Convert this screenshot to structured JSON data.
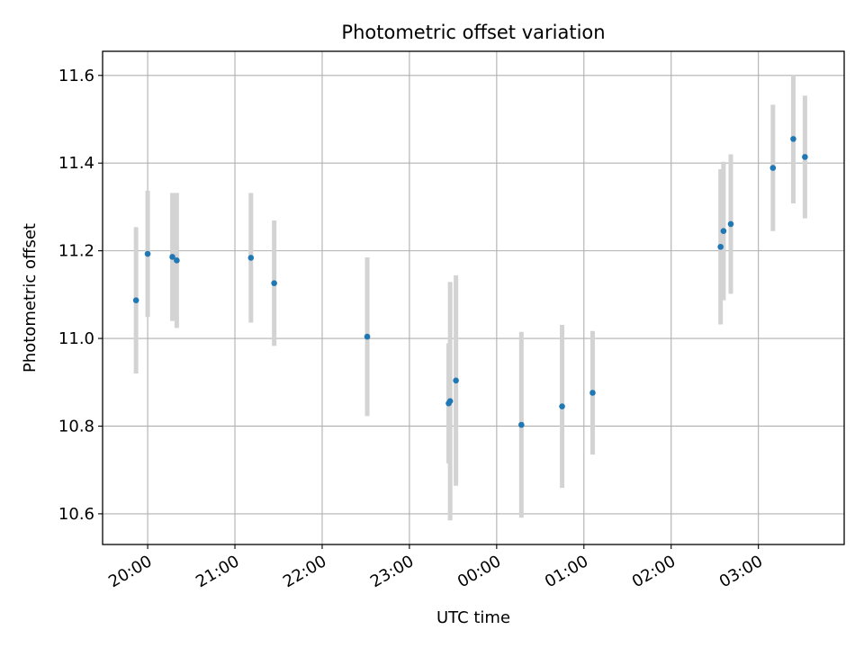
{
  "chart_data": {
    "type": "scatter",
    "title": "Photometric offset variation",
    "xlabel": "UTC time",
    "ylabel": "Photometric offset",
    "x_axis": {
      "kind": "time",
      "tick_labels": [
        "20:00",
        "21:00",
        "22:00",
        "23:00",
        "00:00",
        "01:00",
        "02:00",
        "03:00"
      ],
      "range": [
        "19:29",
        "03:59"
      ]
    },
    "y_axis": {
      "tick_labels": [
        "10.6",
        "10.8",
        "11.0",
        "11.2",
        "11.4",
        "11.6"
      ],
      "ticks": [
        10.6,
        10.8,
        11.0,
        11.2,
        11.4,
        11.6
      ],
      "range": [
        10.53,
        11.655
      ]
    },
    "grid": true,
    "colors": {
      "point": "#1f77b4",
      "errorbar": "#d3d3d3",
      "grid": "#b0b0b0"
    },
    "points": [
      {
        "time": "19:52",
        "y": 11.087,
        "err": 0.167
      },
      {
        "time": "20:00",
        "y": 11.193,
        "err": 0.144
      },
      {
        "time": "20:17",
        "y": 11.186,
        "err": 0.146
      },
      {
        "time": "20:20",
        "y": 11.178,
        "err": 0.154
      },
      {
        "time": "21:11",
        "y": 11.184,
        "err": 0.148
      },
      {
        "time": "21:27",
        "y": 11.126,
        "err": 0.143
      },
      {
        "time": "22:31",
        "y": 11.004,
        "err": 0.181
      },
      {
        "time": "23:27",
        "y": 10.852,
        "err": 0.137
      },
      {
        "time": "23:28",
        "y": 10.857,
        "err": 0.272
      },
      {
        "time": "23:32",
        "y": 10.904,
        "err": 0.24
      },
      {
        "time": "00:17",
        "y": 10.803,
        "err": 0.212
      },
      {
        "time": "00:45",
        "y": 10.845,
        "err": 0.186
      },
      {
        "time": "01:06",
        "y": 10.876,
        "err": 0.141
      },
      {
        "time": "02:34",
        "y": 11.209,
        "err": 0.177
      },
      {
        "time": "02:36",
        "y": 11.245,
        "err": 0.158
      },
      {
        "time": "02:41",
        "y": 11.261,
        "err": 0.159
      },
      {
        "time": "03:10",
        "y": 11.389,
        "err": 0.144
      },
      {
        "time": "03:24",
        "y": 11.455,
        "err": 0.147
      },
      {
        "time": "03:32",
        "y": 11.414,
        "err": 0.14
      }
    ]
  }
}
